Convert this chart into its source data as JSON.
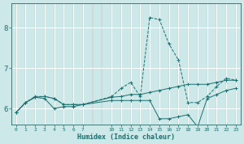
{
  "xlabel": "Humidex (Indice chaleur)",
  "bg_color": "#cce8e8",
  "grid_color": "#ffffff",
  "line_color": "#1a6e6e",
  "xtick_positions": [
    0,
    1,
    2,
    3,
    4,
    5,
    6,
    7,
    10,
    11,
    12,
    13,
    14,
    15,
    16,
    17,
    18,
    19,
    20,
    21,
    22,
    23
  ],
  "xtick_labels": [
    "0",
    "1",
    "2",
    "3",
    "4",
    "5",
    "6",
    "7",
    "10",
    "11",
    "12",
    "13",
    "14",
    "15",
    "16",
    "17",
    "18",
    "19",
    "20",
    "21",
    "22",
    "23"
  ],
  "xlim": [
    -0.5,
    23.5
  ],
  "ylim": [
    5.6,
    8.6
  ],
  "yticks": [
    6,
    7,
    8
  ],
  "lines": [
    {
      "x": [
        0,
        1,
        2,
        3,
        4,
        5,
        6,
        7,
        10,
        11,
        12,
        13,
        14,
        15,
        16,
        17,
        18,
        19,
        20,
        21,
        22,
        23
      ],
      "y": [
        5.9,
        6.15,
        6.3,
        6.3,
        6.25,
        6.1,
        6.1,
        6.1,
        6.3,
        6.5,
        6.65,
        6.3,
        8.25,
        8.2,
        7.6,
        7.2,
        6.15,
        6.15,
        6.3,
        6.55,
        6.75,
        6.7
      ],
      "linestyle": "--",
      "marker": "+"
    },
    {
      "x": [
        0,
        1,
        2,
        3,
        4,
        5,
        6,
        7,
        10,
        11,
        12,
        13,
        14,
        15,
        16,
        17,
        18,
        19,
        20,
        21,
        22,
        23
      ],
      "y": [
        5.9,
        6.15,
        6.28,
        6.3,
        6.25,
        6.1,
        6.1,
        6.1,
        6.28,
        6.3,
        6.35,
        6.35,
        6.4,
        6.45,
        6.5,
        6.55,
        6.6,
        6.6,
        6.6,
        6.65,
        6.7,
        6.7
      ],
      "linestyle": "-",
      "marker": "+"
    },
    {
      "x": [
        0,
        1,
        2,
        3,
        4,
        5,
        6,
        7,
        10,
        11,
        12,
        13,
        14,
        15,
        16,
        17,
        18,
        19,
        20,
        21,
        22,
        23
      ],
      "y": [
        5.9,
        6.15,
        6.28,
        6.25,
        6.0,
        6.05,
        6.05,
        6.1,
        6.2,
        6.2,
        6.2,
        6.2,
        6.2,
        5.75,
        5.75,
        5.8,
        5.85,
        5.55,
        6.25,
        6.35,
        6.45,
        6.5
      ],
      "linestyle": "-",
      "marker": "+"
    }
  ]
}
